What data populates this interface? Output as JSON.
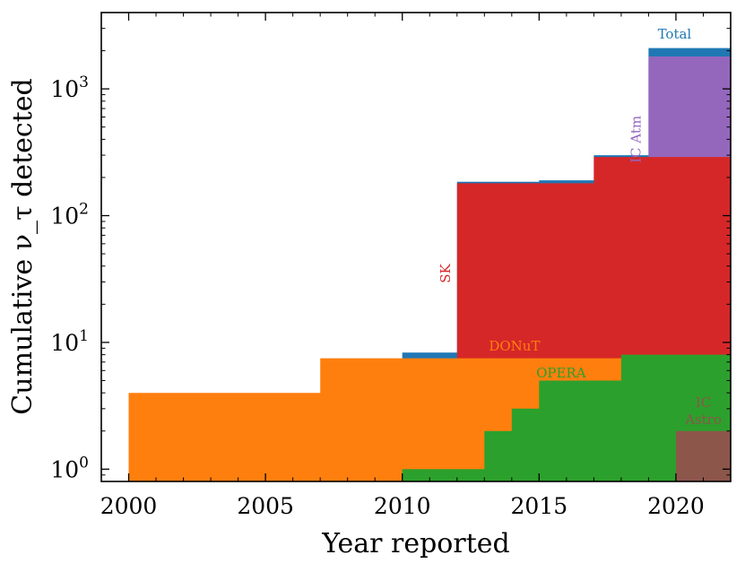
{
  "chart_data": {
    "type": "area",
    "xlabel": "Year reported",
    "ylabel": "Cumulative ν_τ detected",
    "xlim": [
      1999,
      2022
    ],
    "ylim": [
      0.8,
      4000
    ],
    "yscale": "log",
    "x_ticks": [
      2000,
      2005,
      2010,
      2015,
      2020
    ],
    "y_ticks": [
      {
        "value": 1,
        "base": "10",
        "exp": "0"
      },
      {
        "value": 10,
        "base": "10",
        "exp": "1"
      },
      {
        "value": 100,
        "base": "10",
        "exp": "2"
      },
      {
        "value": 1000,
        "base": "10",
        "exp": "3"
      }
    ],
    "grid": false,
    "colors": {
      "Total": "#1f77b4",
      "IC Atm": "#9467bd",
      "SK": "#d62728",
      "DONuT": "#ff7f0e",
      "OPERA": "#2ca02c",
      "IC Astro": "#8c564b"
    },
    "series": [
      {
        "name": "Total",
        "label_lines": [
          "Total"
        ],
        "x": [
          2010,
          2012,
          2012,
          2015,
          2017,
          2019,
          2022
        ],
        "values": [
          8.3,
          8.3,
          185,
          190,
          300,
          2100,
          2100
        ]
      },
      {
        "name": "IC Atm",
        "label_lines": [
          "IC Atm"
        ],
        "x": [
          2019,
          2022
        ],
        "values": [
          1800,
          1800
        ]
      },
      {
        "name": "SK",
        "label_lines": [
          "SK"
        ],
        "x": [
          2012,
          2022
        ],
        "values": [
          180,
          180
        ],
        "step_y": [
          [
            2012,
            180
          ],
          [
            2017,
            290
          ],
          [
            2022,
            290
          ]
        ]
      },
      {
        "name": "DONuT",
        "label_lines": [
          "DONuT"
        ],
        "x": [
          2000,
          2007,
          2022
        ],
        "values": [
          4,
          7.5,
          7.5
        ]
      },
      {
        "name": "OPERA",
        "label_lines": [
          "OPERA"
        ],
        "x": [
          2010,
          2013,
          2014,
          2015,
          2018,
          2022
        ],
        "values": [
          1,
          2,
          3,
          5,
          8,
          8
        ]
      },
      {
        "name": "IC Astro",
        "label_lines": [
          "IC",
          "Astro"
        ],
        "x": [
          2020,
          2022
        ],
        "values": [
          2,
          2
        ]
      }
    ]
  }
}
